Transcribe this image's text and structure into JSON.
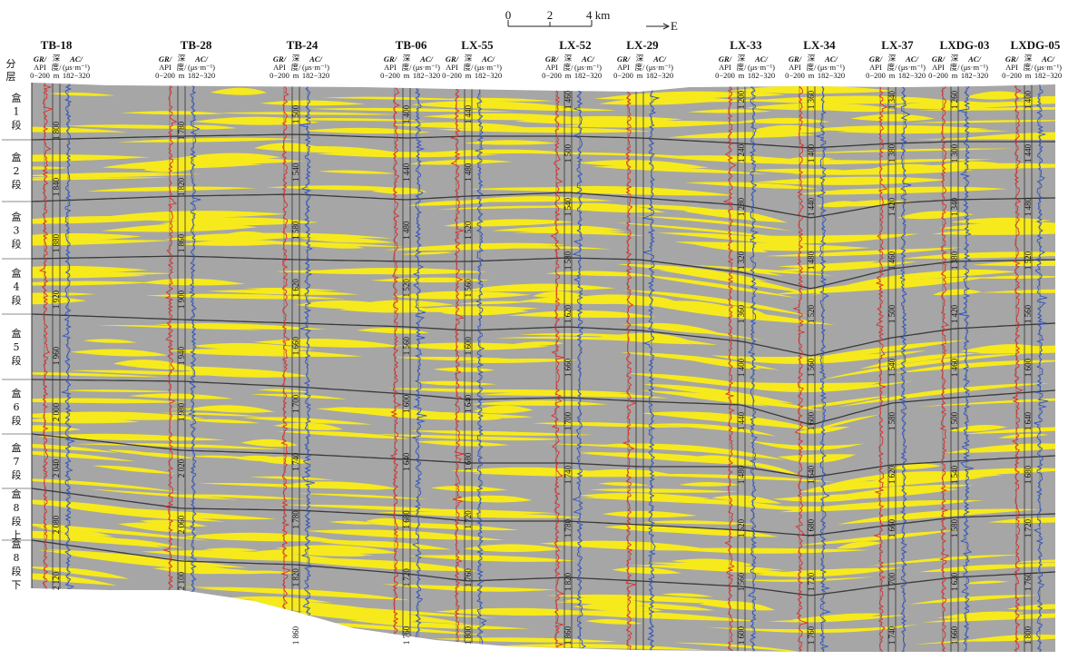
{
  "scale_bar": {
    "ticks": [
      "0",
      "2",
      "4 km"
    ],
    "direction": "E"
  },
  "layer_header": [
    "分",
    "层"
  ],
  "log_header": {
    "gr_label": "GR/",
    "gr_unit": "API",
    "gr_range": "0−200",
    "depth_label_top": "深",
    "depth_label_bottom": "度/",
    "depth_unit": "m",
    "ac_label": "AC/",
    "ac_unit": "(μs·m⁻¹)",
    "ac_range": "182−320"
  },
  "segments": [
    {
      "id": "1",
      "chars": [
        "盒",
        "1",
        "段"
      ]
    },
    {
      "id": "2",
      "chars": [
        "盒",
        "2",
        "段"
      ]
    },
    {
      "id": "3",
      "chars": [
        "盒",
        "3",
        "段"
      ]
    },
    {
      "id": "4",
      "chars": [
        "盒",
        "4",
        "段"
      ]
    },
    {
      "id": "5",
      "chars": [
        "盒",
        "5",
        "段"
      ]
    },
    {
      "id": "6",
      "chars": [
        "盒",
        "6",
        "段"
      ]
    },
    {
      "id": "7",
      "chars": [
        "盒",
        "7",
        "段"
      ]
    },
    {
      "id": "8a",
      "chars": [
        "盒",
        "8",
        "段",
        "上"
      ]
    },
    {
      "id": "8b",
      "chars": [
        "盒",
        "8",
        "段",
        "下"
      ]
    }
  ],
  "wells": [
    {
      "name": "TB-18",
      "depths": [
        "1 800",
        "1 840",
        "1 880",
        "1 920",
        "1 960",
        "2 000",
        "2 040",
        "2 080",
        "2 120"
      ]
    },
    {
      "name": "TB-28",
      "depths": [
        "1 780",
        "1 820",
        "1 860",
        "1 900",
        "1 940",
        "1 980",
        "2 020",
        "2 060",
        "2 100"
      ]
    },
    {
      "name": "TB-24",
      "depths": [
        "1 500",
        "1 540",
        "1 580",
        "1 620",
        "1 660",
        "1 700",
        "1 740",
        "1 780",
        "1 820",
        "1 860"
      ]
    },
    {
      "name": "TB-06",
      "depths": [
        "1 400",
        "1 440",
        "1 480",
        "1 520",
        "1 560",
        "1 600",
        "1 640",
        "1 680",
        "1 720",
        "1 760"
      ]
    },
    {
      "name": "LX-55",
      "depths": [
        "1 440",
        "1 480",
        "1 520",
        "1 560",
        "1 600",
        "1 640",
        "1 680",
        "1 720",
        "1 760",
        "1 800"
      ]
    },
    {
      "name": "LX-52",
      "depths": [
        "1 460",
        "1 500",
        "1 540",
        "1 580",
        "1 620",
        "1 660",
        "1 700",
        "1 740",
        "1 780",
        "1 820",
        "1 860"
      ]
    },
    {
      "name": "LX-29",
      "depths": []
    },
    {
      "name": "LX-33",
      "depths": [
        "1 200",
        "1 240",
        "1 280",
        "1 320",
        "1 360",
        "1 400",
        "1 440",
        "1 480",
        "1 520",
        "1 560",
        "1 600"
      ]
    },
    {
      "name": "LX-34",
      "depths": [
        "1 360",
        "1 400",
        "1 440",
        "1 480",
        "1 520",
        "1 560",
        "1 600",
        "1 640",
        "1 680",
        "1 720",
        "1 760"
      ]
    },
    {
      "name": "LX-37",
      "depths": [
        "1 340",
        "1 380",
        "1 420",
        "1 460",
        "1 500",
        "1 540",
        "1 580",
        "1 620",
        "1 660",
        "1 700",
        "1 740"
      ]
    },
    {
      "name": "LXDG-03",
      "depths": [
        "1 260",
        "1 300",
        "1 340",
        "1 380",
        "1 420",
        "1 460",
        "1 500",
        "1 540",
        "1 580",
        "1 620",
        "1 660"
      ]
    },
    {
      "name": "LXDG-05",
      "depths": [
        "1 400",
        "1 440",
        "1 480",
        "1 520",
        "1 560",
        "1 600",
        "1 640",
        "1 680",
        "1 720",
        "1 760",
        "1 800"
      ]
    }
  ],
  "colors": {
    "background": "#a6a6a6",
    "sand": "#f7ea1c",
    "boundary": "#3a3a3a",
    "gr_curve": "#e02828",
    "ac_curve": "#2a52c8"
  }
}
